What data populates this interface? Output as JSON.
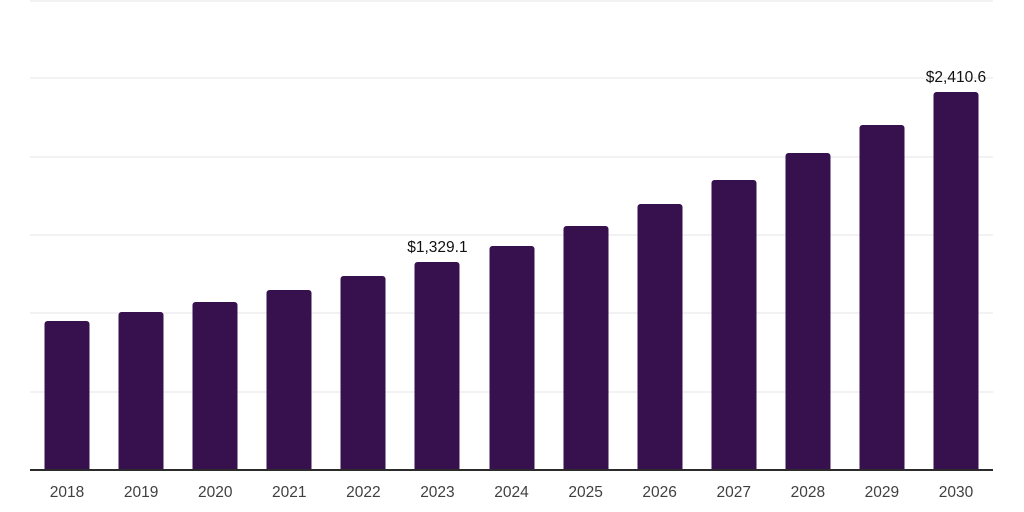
{
  "chart_data": {
    "type": "bar",
    "title": "",
    "xlabel": "",
    "ylabel": "",
    "categories": [
      "2018",
      "2019",
      "2020",
      "2021",
      "2022",
      "2023",
      "2024",
      "2025",
      "2026",
      "2027",
      "2028",
      "2029",
      "2030"
    ],
    "values": [
      950,
      1012,
      1075,
      1150,
      1237,
      1329.1,
      1432,
      1556,
      1698,
      1849,
      2021,
      2202,
      2410.6
    ],
    "value_labels": [
      {
        "index": 5,
        "text": "$1,329.1"
      },
      {
        "index": 12,
        "text": "$2,410.6"
      }
    ],
    "ylim": [
      0,
      3000
    ],
    "gridline_values": [
      500,
      1000,
      1500,
      2000,
      2500,
      3000
    ],
    "grid": "horizontal-only",
    "legend": "none",
    "y_axis_tick_labels": "none"
  },
  "colors": {
    "background": "#ffffff",
    "bar": "#36114e",
    "gridline": "#f2f2f4",
    "axis_line": "#2b2b2b",
    "x_tick_label": "#404040",
    "data_label": "#111111"
  }
}
